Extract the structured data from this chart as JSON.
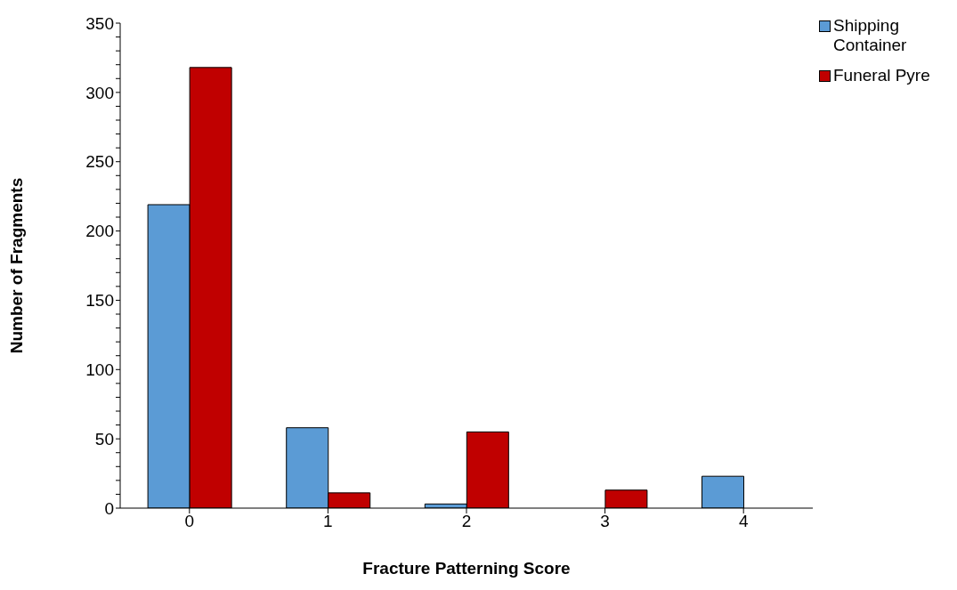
{
  "chart_data": {
    "type": "bar",
    "xlabel": "Fracture Patterning Score",
    "ylabel": "Number of Fragments",
    "categories": [
      "0",
      "1",
      "2",
      "3",
      "4"
    ],
    "series": [
      {
        "name": "Shipping Container",
        "color": "#5b9bd5",
        "values": [
          219,
          58,
          3,
          0,
          23
        ]
      },
      {
        "name": "Funeral Pyre",
        "color": "#c00000",
        "values": [
          318,
          11,
          55,
          13,
          0
        ]
      }
    ],
    "ylim": [
      0,
      350
    ],
    "yticks": [
      0,
      {
        "value": 10,
        "label": null
      },
      {
        "value": 20,
        "label": null
      },
      {
        "value": 30,
        "label": null
      },
      {
        "value": 40,
        "label": null
      },
      50,
      {
        "value": 60,
        "label": null
      },
      {
        "value": 70,
        "label": null
      },
      {
        "value": 80,
        "label": null
      },
      {
        "value": 90,
        "label": null
      },
      100,
      {
        "value": 110,
        "label": null
      },
      {
        "value": 120,
        "label": null
      },
      {
        "value": 130,
        "label": null
      },
      {
        "value": 140,
        "label": null
      },
      150,
      {
        "value": 160,
        "label": null
      },
      {
        "value": 170,
        "label": null
      },
      {
        "value": 180,
        "label": null
      },
      {
        "value": 190,
        "label": null
      },
      200,
      {
        "value": 210,
        "label": null
      },
      {
        "value": 220,
        "label": null
      },
      {
        "value": 230,
        "label": null
      },
      {
        "value": 240,
        "label": null
      },
      250,
      {
        "value": 260,
        "label": null
      },
      {
        "value": 270,
        "label": null
      },
      {
        "value": 280,
        "label": null
      },
      {
        "value": 290,
        "label": null
      },
      300,
      {
        "value": 310,
        "label": null
      },
      {
        "value": 320,
        "label": null
      },
      {
        "value": 330,
        "label": null
      },
      {
        "value": 340,
        "label": null
      },
      350
    ],
    "grid": false,
    "legend": "top right"
  }
}
